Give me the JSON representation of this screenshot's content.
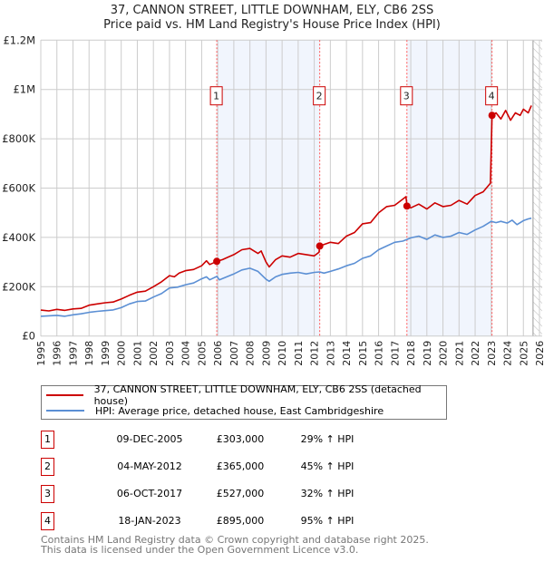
{
  "chart_data": {
    "type": "line",
    "title": "37, CANNON STREET, LITTLE DOWNHAM, ELY, CB6 2SS",
    "subtitle": "Price paid vs. HM Land Registry's House Price Index (HPI)",
    "xlim": [
      1995,
      2026
    ],
    "ylim": [
      0,
      1200000
    ],
    "grid": true,
    "xticks": [
      "1995",
      "1996",
      "1997",
      "1998",
      "1999",
      "2000",
      "2001",
      "2002",
      "2003",
      "2004",
      "2005",
      "2006",
      "2007",
      "2008",
      "2009",
      "2010",
      "2011",
      "2012",
      "2013",
      "2014",
      "2015",
      "2016",
      "2017",
      "2018",
      "2019",
      "2020",
      "2021",
      "2022",
      "2023",
      "2024",
      "2025",
      "2026"
    ],
    "yticks": [
      {
        "v": 0,
        "label": "£0"
      },
      {
        "v": 200000,
        "label": "£200K"
      },
      {
        "v": 400000,
        "label": "£400K"
      },
      {
        "v": 600000,
        "label": "£600K"
      },
      {
        "v": 800000,
        "label": "£800K"
      },
      {
        "v": 1000000,
        "label": "£1M"
      },
      {
        "v": 1200000,
        "label": "£1.2M"
      }
    ],
    "forecast_start": 2025.6,
    "shaded_ranges": [
      [
        1,
        2
      ],
      [
        3,
        4
      ]
    ],
    "series": [
      {
        "name": "37, CANNON STREET, LITTLE DOWNHAM, ELY, CB6 2SS (detached house)",
        "color": "#cc0000",
        "x": [
          1995,
          1995.5,
          1996,
          1996.5,
          1997,
          1997.5,
          1998,
          1998.5,
          1999,
          1999.5,
          2000,
          2000.5,
          2001,
          2001.5,
          2002,
          2002.5,
          2003,
          2003.3,
          2003.6,
          2004,
          2004.5,
          2005,
          2005.3,
          2005.5,
          2005.95,
          2006.3,
          2007,
          2007.5,
          2008,
          2008.5,
          2008.7,
          2009,
          2009.2,
          2009.6,
          2010,
          2010.5,
          2011,
          2011.5,
          2012,
          2012.3,
          2012.34,
          2013,
          2013.5,
          2014,
          2014.5,
          2015,
          2015.5,
          2016,
          2016.5,
          2017,
          2017.5,
          2017.7,
          2017.77,
          2018,
          2018.5,
          2019,
          2019.5,
          2020,
          2020.5,
          2021,
          2021.5,
          2022,
          2022.5,
          2022.95,
          2023.05,
          2023.3,
          2023.6,
          2023.9,
          2024.2,
          2024.5,
          2024.8,
          2025,
          2025.3,
          2025.5
        ],
        "y": [
          105000,
          102000,
          108000,
          104000,
          110000,
          112000,
          125000,
          130000,
          135000,
          138000,
          150000,
          165000,
          178000,
          182000,
          200000,
          220000,
          245000,
          240000,
          255000,
          265000,
          270000,
          285000,
          305000,
          290000,
          303000,
          310000,
          330000,
          350000,
          355000,
          335000,
          345000,
          300000,
          280000,
          310000,
          325000,
          320000,
          335000,
          330000,
          325000,
          340000,
          365000,
          380000,
          375000,
          405000,
          420000,
          455000,
          460000,
          500000,
          525000,
          530000,
          555000,
          565000,
          527000,
          520000,
          535000,
          515000,
          540000,
          525000,
          530000,
          550000,
          535000,
          570000,
          585000,
          620000,
          895000,
          905000,
          880000,
          915000,
          875000,
          905000,
          895000,
          920000,
          905000,
          935000
        ]
      },
      {
        "name": "HPI: Average price, detached house, East Cambridgeshire",
        "color": "#5b8fd4",
        "x": [
          1995,
          1995.5,
          1996,
          1996.5,
          1997,
          1997.5,
          1998,
          1998.5,
          1999,
          1999.5,
          2000,
          2000.5,
          2001,
          2001.5,
          2002,
          2002.5,
          2003,
          2003.5,
          2004,
          2004.5,
          2005,
          2005.3,
          2005.5,
          2005.95,
          2006.1,
          2007,
          2007.5,
          2008,
          2008.5,
          2009,
          2009.2,
          2009.6,
          2010,
          2010.5,
          2011,
          2011.5,
          2012,
          2012.34,
          2012.6,
          2013,
          2013.5,
          2014,
          2014.5,
          2015,
          2015.5,
          2016,
          2016.5,
          2017,
          2017.5,
          2017.77,
          2018,
          2018.5,
          2019,
          2019.5,
          2020,
          2020.5,
          2021,
          2021.5,
          2022,
          2022.5,
          2023,
          2023.3,
          2023.6,
          2024,
          2024.3,
          2024.6,
          2025,
          2025.3,
          2025.5
        ],
        "y": [
          80000,
          82000,
          84000,
          80000,
          86000,
          90000,
          96000,
          100000,
          103000,
          106000,
          115000,
          130000,
          140000,
          142000,
          158000,
          172000,
          195000,
          198000,
          208000,
          215000,
          232000,
          240000,
          228000,
          242000,
          228000,
          252000,
          268000,
          275000,
          262000,
          230000,
          222000,
          240000,
          250000,
          255000,
          258000,
          252000,
          258000,
          260000,
          255000,
          262000,
          272000,
          285000,
          295000,
          315000,
          325000,
          350000,
          365000,
          380000,
          385000,
          392000,
          398000,
          405000,
          392000,
          410000,
          400000,
          405000,
          420000,
          412000,
          430000,
          445000,
          465000,
          460000,
          465000,
          458000,
          470000,
          452000,
          468000,
          475000,
          478000
        ]
      }
    ],
    "sales": [
      {
        "id": "1",
        "year": 2005.94,
        "price": 303000
      },
      {
        "id": "2",
        "year": 2012.34,
        "price": 365000
      },
      {
        "id": "3",
        "year": 2017.76,
        "price": 527000
      },
      {
        "id": "4",
        "year": 2023.05,
        "price": 895000
      }
    ]
  },
  "legend": {
    "property": "37, CANNON STREET, LITTLE DOWNHAM, ELY, CB6 2SS (detached house)",
    "hpi": "HPI: Average price, detached house, East Cambridgeshire"
  },
  "table": [
    {
      "num": "1",
      "date": "09-DEC-2005",
      "price": "£303,000",
      "hpi": "29% ↑ HPI"
    },
    {
      "num": "2",
      "date": "04-MAY-2012",
      "price": "£365,000",
      "hpi": "45% ↑ HPI"
    },
    {
      "num": "3",
      "date": "06-OCT-2017",
      "price": "£527,000",
      "hpi": "32% ↑ HPI"
    },
    {
      "num": "4",
      "date": "18-JAN-2023",
      "price": "£895,000",
      "hpi": "95% ↑ HPI"
    }
  ],
  "footer": {
    "line1": "Contains HM Land Registry data © Crown copyright and database right 2025.",
    "line2": "This data is licensed under the Open Government Licence v3.0."
  }
}
